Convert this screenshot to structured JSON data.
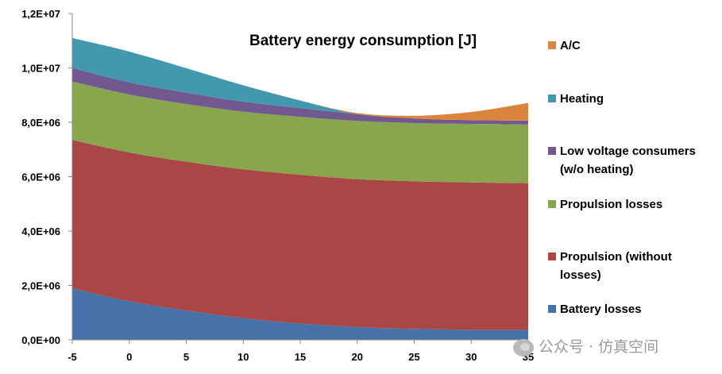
{
  "chart_data": {
    "type": "area",
    "stacked": true,
    "title": "Battery energy consumption [J]",
    "x": [
      -5,
      0,
      5,
      10,
      15,
      20,
      25,
      30,
      35
    ],
    "xlim": [
      -5,
      35
    ],
    "ylim": [
      0,
      12000000
    ],
    "x_ticks": [
      "-5",
      "0",
      "5",
      "10",
      "15",
      "20",
      "25",
      "30",
      "35"
    ],
    "y_ticks": [
      "0,0E+00",
      "2,0E+06",
      "4,0E+06",
      "6,0E+06",
      "8,0E+06",
      "1,0E+07",
      "1,2E+07"
    ],
    "y_tick_values": [
      0,
      2000000,
      4000000,
      6000000,
      8000000,
      10000000,
      12000000
    ],
    "grid": false,
    "legend_position": "right",
    "series": [
      {
        "name": "Battery losses",
        "color": "#4672a9",
        "values": [
          1900000,
          1420000,
          1080000,
          800000,
          600000,
          470000,
          400000,
          370000,
          370000
        ]
      },
      {
        "name": "Propulsion (without losses)",
        "color": "#aa4644",
        "values": [
          5450000,
          5470000,
          5470000,
          5470000,
          5470000,
          5440000,
          5430000,
          5420000,
          5390000
        ]
      },
      {
        "name": "Propulsion losses",
        "color": "#89a54e",
        "values": [
          2150000,
          2130000,
          2120000,
          2120000,
          2130000,
          2140000,
          2140000,
          2150000,
          2160000
        ]
      },
      {
        "name": "Low voltage consumers (w/o heating)",
        "color": "#71588f",
        "values": [
          500000,
          450000,
          420000,
          370000,
          320000,
          250000,
          170000,
          140000,
          140000
        ]
      },
      {
        "name": "Heating",
        "color": "#4198af",
        "values": [
          1100000,
          1130000,
          900000,
          600000,
          280000,
          0,
          0,
          0,
          0
        ]
      },
      {
        "name": "A/C",
        "color": "#db843d",
        "values": [
          0,
          0,
          0,
          0,
          0,
          40000,
          100000,
          300000,
          650000
        ]
      }
    ],
    "legend": [
      {
        "label": [
          "A/C"
        ],
        "color": "#db843d"
      },
      {
        "label": [
          "Heating"
        ],
        "color": "#4198af"
      },
      {
        "label": [
          "Low voltage consumers",
          "(w/o heating)"
        ],
        "color": "#71588f"
      },
      {
        "label": [
          "Propulsion losses"
        ],
        "color": "#89a54e"
      },
      {
        "label": [
          "Propulsion (without",
          "losses)"
        ],
        "color": "#aa4644"
      },
      {
        "label": [
          "Battery losses"
        ],
        "color": "#4672a9"
      }
    ]
  },
  "watermark": {
    "text": "公众号 · 仿真空间"
  }
}
